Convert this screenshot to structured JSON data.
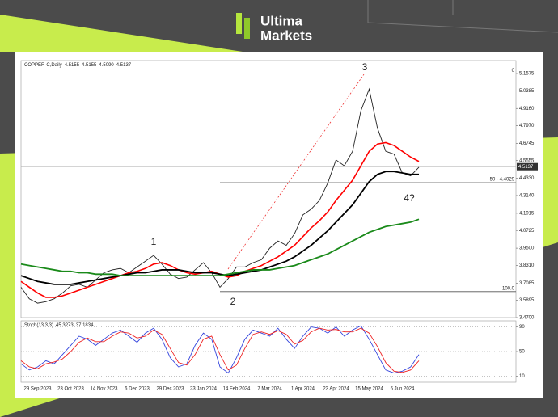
{
  "brand": {
    "line1": "Ultima",
    "line2": "Markets"
  },
  "chart_data": [
    {
      "type": "line",
      "title": "COPPER-C,Daily",
      "ohlc": [
        4.5155,
        4.5155,
        {
          "value": 4.509,
          "label": "4.5090"
        },
        4.5137
      ],
      "categories": [
        null,
        null,
        "29 Sep 2023",
        null,
        null,
        null,
        "23 Oct 2023",
        null,
        null,
        null,
        "14 Nov 2023",
        null,
        null,
        null,
        "6 Dec 2023",
        null,
        null,
        null,
        "29 Dec 2023",
        null,
        null,
        null,
        "23 Jan 2024",
        null,
        null,
        null,
        "14 Feb 2024",
        null,
        null,
        null,
        "7 Mar 2024",
        null,
        null,
        null,
        "1 Apr 2024",
        null,
        null,
        null,
        "23 Apr 2024",
        null,
        null,
        null,
        "15 May 2024",
        null,
        null,
        null,
        "6 Jun 2024",
        null,
        null
      ],
      "series": [
        {
          "color": "#222222",
          "values": [
            3.68,
            3.6,
            3.57,
            3.58,
            3.6,
            3.64,
            3.69,
            3.7,
            3.68,
            3.73,
            3.78,
            3.8,
            3.81,
            3.78,
            3.82,
            3.86,
            3.9,
            3.84,
            3.77,
            3.74,
            3.75,
            3.8,
            3.85,
            3.78,
            3.68,
            3.74,
            3.82,
            3.82,
            3.85,
            3.87,
            3.95,
            4.0,
            3.97,
            4.05,
            4.18,
            4.22,
            4.28,
            4.4,
            4.56,
            4.52,
            4.62,
            4.9,
            5.05,
            4.78,
            4.62,
            4.6,
            4.47,
            4.45,
            4.51
          ]
        },
        {
          "color": "#ff0000",
          "values": [
            3.72,
            3.68,
            3.64,
            3.61,
            3.61,
            3.62,
            3.64,
            3.66,
            3.68,
            3.7,
            3.72,
            3.74,
            3.76,
            3.78,
            3.79,
            3.81,
            3.84,
            3.85,
            3.83,
            3.8,
            3.78,
            3.77,
            3.78,
            3.79,
            3.77,
            3.75,
            3.76,
            3.79,
            3.81,
            3.83,
            3.86,
            3.89,
            3.93,
            3.97,
            4.03,
            4.09,
            4.14,
            4.2,
            4.28,
            4.35,
            4.42,
            4.52,
            4.62,
            4.67,
            4.68,
            4.66,
            4.62,
            4.58,
            4.55
          ]
        },
        {
          "color": "#000000",
          "values": [
            3.76,
            3.74,
            3.72,
            3.71,
            3.7,
            3.7,
            3.7,
            3.71,
            3.72,
            3.73,
            3.74,
            3.75,
            3.76,
            3.77,
            3.78,
            3.78,
            3.79,
            3.8,
            3.8,
            3.8,
            3.79,
            3.78,
            3.78,
            3.78,
            3.77,
            3.76,
            3.77,
            3.78,
            3.79,
            3.8,
            3.82,
            3.84,
            3.86,
            3.89,
            3.93,
            3.97,
            4.02,
            4.07,
            4.13,
            4.19,
            4.25,
            4.33,
            4.41,
            4.46,
            4.48,
            4.48,
            4.47,
            4.46,
            4.46
          ]
        },
        {
          "color": "#1a8a1a",
          "values": [
            3.84,
            3.83,
            3.82,
            3.81,
            3.8,
            3.79,
            3.79,
            3.78,
            3.78,
            3.77,
            3.77,
            3.77,
            3.76,
            3.76,
            3.76,
            3.76,
            3.76,
            3.76,
            3.76,
            3.76,
            3.76,
            3.76,
            3.76,
            3.76,
            3.76,
            3.77,
            3.78,
            3.79,
            3.8,
            3.8,
            3.8,
            3.81,
            3.82,
            3.83,
            3.85,
            3.87,
            3.89,
            3.91,
            3.94,
            3.97,
            4.0,
            4.03,
            4.06,
            4.08,
            4.1,
            4.11,
            4.12,
            4.13,
            4.15
          ]
        }
      ],
      "ylim": [
        3.47,
        5.247
      ],
      "yticks": [
        5.1575,
        5.0385,
        {
          "value": 4.916,
          "label": "4.9160"
        },
        {
          "value": 4.797,
          "label": "4.7970"
        },
        4.6745,
        4.5555,
        {
          "value": 4.433,
          "label": "4.4330"
        },
        {
          "value": 4.314,
          "label": "4.3140"
        },
        4.1915,
        4.0725,
        {
          "value": 3.95,
          "label": "3.9500"
        },
        {
          "value": 3.831,
          "label": "3.8310"
        },
        3.7085,
        3.5895,
        {
          "value": 3.47,
          "label": "3.4700"
        }
      ],
      "fib_levels": [
        {
          "value": 5.155,
          "label": "0"
        },
        {
          "value": 4.4029,
          "label": "50 - 4.4029"
        },
        {
          "value": 3.65,
          "label": "100.0"
        }
      ],
      "annotations": [
        "1",
        "2",
        "3",
        "4?"
      ]
    },
    {
      "type": "line",
      "title": "Stoch(13,3,3)",
      "readings": [
        45.3273,
        37.1834
      ],
      "series": [
        {
          "color": "#3344dd",
          "values": [
            30,
            20,
            25,
            35,
            30,
            45,
            60,
            75,
            70,
            60,
            70,
            80,
            85,
            75,
            65,
            80,
            88,
            70,
            40,
            25,
            30,
            60,
            80,
            70,
            25,
            15,
            40,
            70,
            85,
            80,
            75,
            88,
            70,
            55,
            75,
            90,
            88,
            80,
            90,
            75,
            85,
            92,
            70,
            45,
            20,
            15,
            18,
            25,
            45
          ]
        },
        {
          "color": "#ee2222",
          "values": [
            35,
            25,
            22,
            30,
            33,
            38,
            50,
            65,
            72,
            66,
            66,
            75,
            82,
            80,
            72,
            75,
            85,
            78,
            55,
            32,
            28,
            45,
            70,
            75,
            45,
            20,
            28,
            55,
            78,
            82,
            78,
            84,
            78,
            62,
            68,
            82,
            88,
            85,
            86,
            82,
            82,
            88,
            80,
            58,
            32,
            18,
            16,
            20,
            35
          ]
        }
      ],
      "ylim": [
        0,
        100
      ],
      "yticks": [
        10,
        50,
        90
      ]
    }
  ]
}
